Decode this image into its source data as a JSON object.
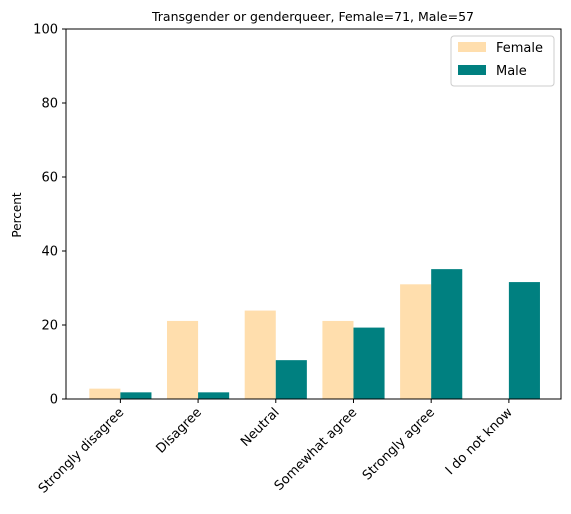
{
  "chart_data": {
    "type": "bar",
    "title": "Transgender or genderqueer, Female=71, Male=57",
    "xlabel": "",
    "ylabel": "Percent",
    "ylim": [
      0,
      100
    ],
    "yticks": [
      0,
      20,
      40,
      60,
      80,
      100
    ],
    "grid": false,
    "legend_position": "top-right",
    "categories": [
      "Strongly disagree",
      "Disagree",
      "Neutral",
      "Somewhat agree",
      "Strongly agree",
      "I do not know"
    ],
    "series": [
      {
        "name": "Female",
        "color": "#ffdead",
        "values": [
          2.8,
          21.1,
          23.9,
          21.1,
          31.0,
          0.0
        ]
      },
      {
        "name": "Male",
        "color": "#008080",
        "values": [
          1.8,
          1.8,
          10.5,
          19.3,
          35.1,
          31.6
        ]
      }
    ]
  }
}
